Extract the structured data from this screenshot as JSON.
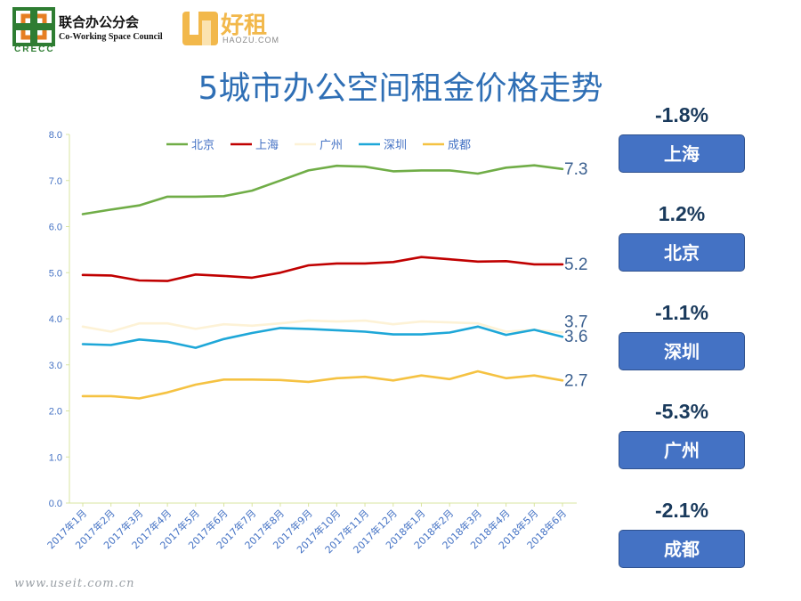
{
  "header": {
    "org_name_cn": "联合办公分会",
    "org_name_en": "Co-Working Space Council",
    "org_abbr": "CRECC",
    "brand_cn": "好租",
    "brand_en": "HAOZU.COM",
    "title": "5城市办公空间租金价格走势"
  },
  "chart_data": {
    "type": "line",
    "title": "5城市办公空间租金价格走势",
    "categories": [
      "2017年1月",
      "2017年2月",
      "2017年3月",
      "2017年4月",
      "2017年5月",
      "2017年6月",
      "2017年7月",
      "2017年8月",
      "2017年9月",
      "2017年10月",
      "2017年11月",
      "2017年12月",
      "2018年1月",
      "2018年2月",
      "2018年3月",
      "2018年4月",
      "2018年5月",
      "2018年6月"
    ],
    "ylim": [
      0,
      8
    ],
    "yticks": [
      "0.0",
      "1.0",
      "2.0",
      "3.0",
      "4.0",
      "5.0",
      "6.0",
      "7.0",
      "8.0"
    ],
    "legend_position": "top",
    "series": [
      {
        "name": "北京",
        "color": "#70ad47",
        "end_label": "7.3",
        "values": [
          6.27,
          6.37,
          6.46,
          6.65,
          6.65,
          6.66,
          6.78,
          7.0,
          7.22,
          7.32,
          7.3,
          7.2,
          7.22,
          7.22,
          7.15,
          7.28,
          7.33,
          7.25
        ]
      },
      {
        "name": "上海",
        "color": "#c00000",
        "end_label": "5.2",
        "values": [
          4.95,
          4.94,
          4.83,
          4.82,
          4.96,
          4.93,
          4.89,
          5.0,
          5.16,
          5.2,
          5.2,
          5.23,
          5.34,
          5.29,
          5.24,
          5.25,
          5.18,
          5.18
        ]
      },
      {
        "name": "广州",
        "color": "#fdf2d6",
        "end_label": "3.7",
        "values": [
          3.83,
          3.72,
          3.9,
          3.9,
          3.78,
          3.88,
          3.85,
          3.9,
          3.96,
          3.94,
          3.96,
          3.88,
          3.94,
          3.92,
          3.9,
          3.72,
          3.76,
          3.7
        ]
      },
      {
        "name": "深圳",
        "color": "#1ea7d8",
        "end_label": "3.6",
        "values": [
          3.45,
          3.43,
          3.55,
          3.5,
          3.37,
          3.56,
          3.69,
          3.8,
          3.78,
          3.75,
          3.72,
          3.66,
          3.66,
          3.7,
          3.83,
          3.65,
          3.76,
          3.61
        ]
      },
      {
        "name": "成都",
        "color": "#f5c242",
        "end_label": "2.7",
        "values": [
          2.32,
          2.32,
          2.27,
          2.4,
          2.57,
          2.68,
          2.68,
          2.67,
          2.63,
          2.71,
          2.74,
          2.66,
          2.77,
          2.69,
          2.86,
          2.71,
          2.77,
          2.66
        ]
      }
    ]
  },
  "stats": [
    {
      "pct": "-1.8%",
      "city": "上海"
    },
    {
      "pct": "1.2%",
      "city": "北京"
    },
    {
      "pct": "-1.1%",
      "city": "深圳"
    },
    {
      "pct": "-5.3%",
      "city": "广州"
    },
    {
      "pct": "-2.1%",
      "city": "成都"
    }
  ],
  "footer": {
    "watermark": "www.useit.com.cn"
  },
  "colors": {
    "title": "#2f6fb5",
    "stat_box": "#4472c4",
    "axis_text": "#4472c4",
    "axis_line": "#d9e4a0"
  }
}
